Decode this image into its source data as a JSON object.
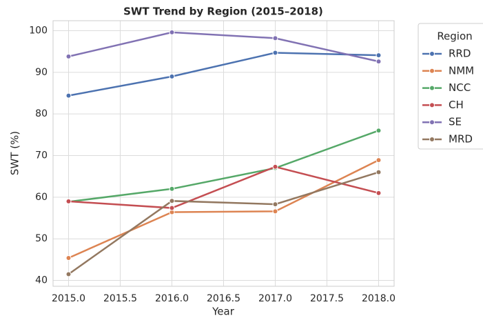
{
  "chart_data": {
    "type": "line",
    "title": "SWT Trend by Region (2015–2018)",
    "x_label": "Year",
    "y_label": "SWT (%)",
    "legend_title": "Region",
    "legend": "outside right",
    "grid": true,
    "x": [
      2015,
      2016,
      2017,
      2018
    ],
    "series": [
      {
        "name": "RRD",
        "color": "#4c72b0",
        "values": [
          84.4,
          89.0,
          94.7,
          94.1
        ]
      },
      {
        "name": "NMM",
        "color": "#dd8452",
        "values": [
          45.4,
          56.4,
          56.6,
          68.9
        ]
      },
      {
        "name": "NCC",
        "color": "#55a868",
        "values": [
          58.9,
          62.0,
          67.0,
          76.0
        ]
      },
      {
        "name": "CH",
        "color": "#c44e52",
        "values": [
          59.0,
          57.4,
          67.3,
          61.0
        ]
      },
      {
        "name": "SE",
        "color": "#8172b3",
        "values": [
          93.8,
          99.6,
          98.2,
          92.6
        ]
      },
      {
        "name": "MRD",
        "color": "#937860",
        "values": [
          41.5,
          59.1,
          58.3,
          66.0
        ]
      }
    ],
    "xlim": [
      2014.85,
      2018.15
    ],
    "xticks": [
      {
        "value": 2015,
        "label": "2015.0"
      },
      {
        "value": 2015.5,
        "label": "2015.5"
      },
      {
        "value": 2016,
        "label": "2016.0"
      },
      {
        "value": 2016.5,
        "label": "2016.5"
      },
      {
        "value": 2017,
        "label": "2017.0"
      },
      {
        "value": 2017.5,
        "label": "2017.5"
      },
      {
        "value": 2018,
        "label": "2018.0"
      }
    ],
    "ylim": [
      38.6,
      102.4
    ],
    "yticks": [
      40,
      50,
      60,
      70,
      80,
      90,
      100
    ]
  }
}
